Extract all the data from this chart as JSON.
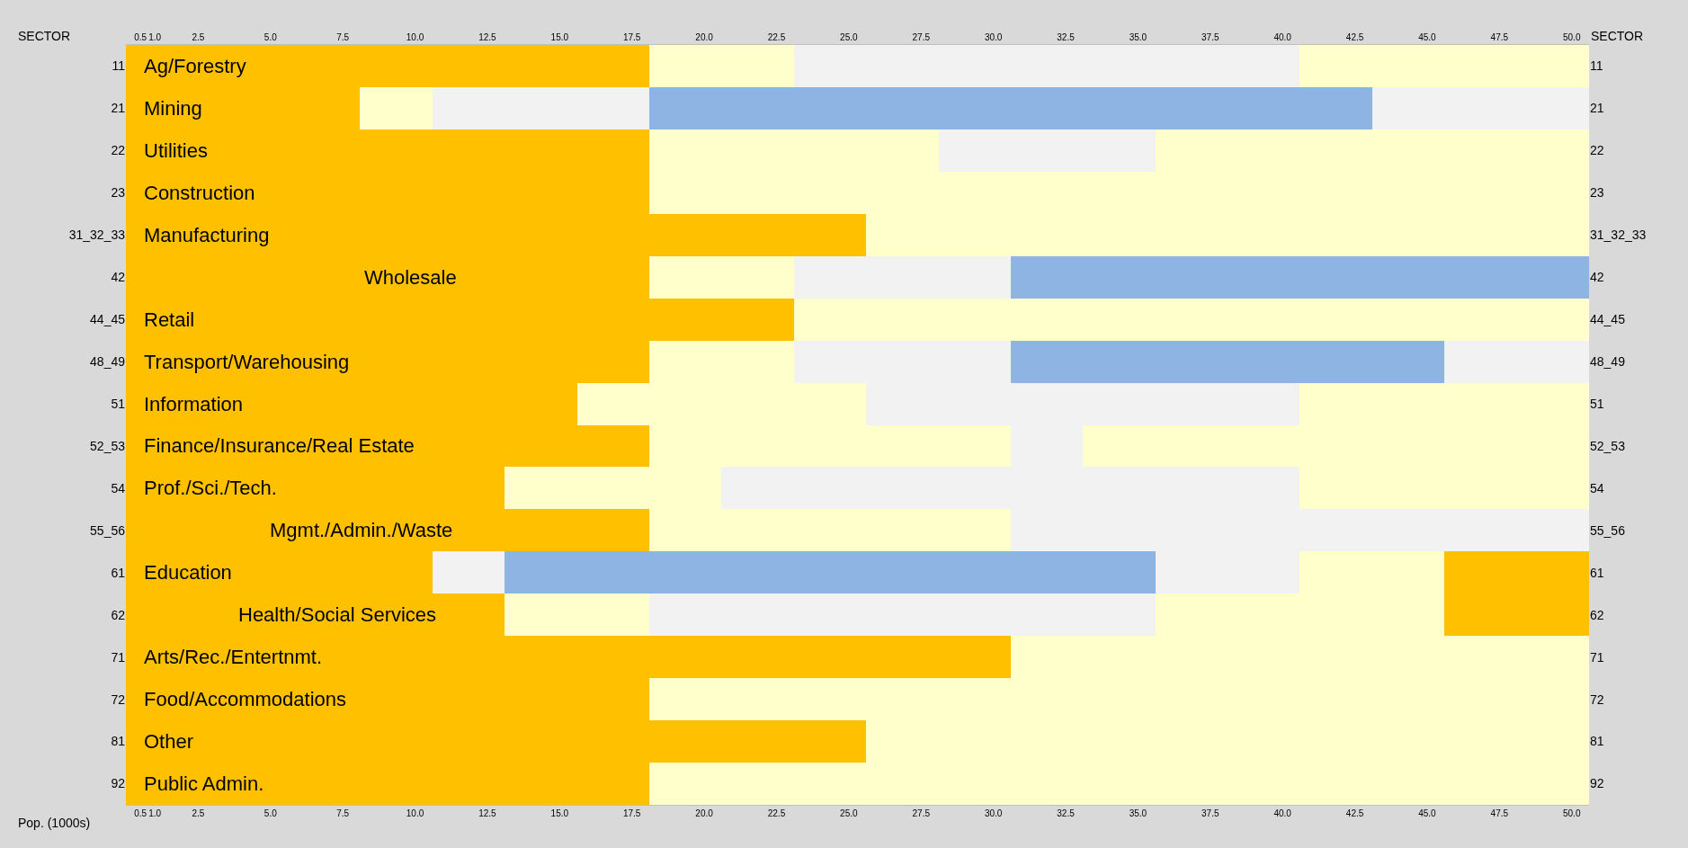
{
  "chart_data": {
    "type": "bar",
    "orientation": "horizontal",
    "stacked": true,
    "xlabel": "Pop. (1000s)",
    "ylabel": "SECTOR",
    "y2label": "SECTOR",
    "categories": [
      "11",
      "21",
      "22",
      "23",
      "31_32_33",
      "42",
      "44_45",
      "48_49",
      "51",
      "52_53",
      "54",
      "55_56",
      "61",
      "62",
      "71",
      "72",
      "81",
      "92"
    ],
    "series": [
      {
        "values": [
          18.1,
          8.1,
          18.1,
          18.1,
          25.6,
          18.1,
          23.1,
          18.1,
          15.6,
          18.1,
          13.1,
          18.1,
          10.6,
          13.1,
          30.6,
          18.1,
          25.6,
          18.1
        ],
        "colors": [
          "#ffc000",
          "#ffc000",
          "#ffc000",
          "#ffc000",
          "#ffc000",
          "#ffc000",
          "#ffc000",
          "#ffc000",
          "#ffc000",
          "#ffc000",
          "#ffc000",
          "#ffc000",
          "#ffc000",
          "#ffc000",
          "#ffc000",
          "#ffc000",
          "#ffc000",
          "#ffc000"
        ]
      },
      {
        "values": [
          5,
          2.5,
          10,
          32.5,
          25,
          5,
          27.5,
          5,
          10,
          12.5,
          7.5,
          12.5,
          2.5,
          5,
          20,
          32.5,
          25,
          32.5
        ],
        "colors": [
          "#ffffcc",
          "#ffffcc",
          "#ffffcc",
          "#ffffcc",
          "#ffffcc",
          "#ffffcc",
          "#ffffcc",
          "#ffffcc",
          "#ffffcc",
          "#ffffcc",
          "#ffffcc",
          "#ffffcc",
          "#f2f2f2",
          "#ffffcc",
          "#ffffcc",
          "#ffffcc",
          "#ffffcc",
          "#ffffcc"
        ]
      },
      {
        "values": [
          17.5,
          7.5,
          7.5,
          null,
          null,
          7.5,
          null,
          7.5,
          15,
          2.5,
          20,
          20,
          22.5,
          17.5,
          null,
          null,
          null,
          null
        ],
        "colors": [
          "#f2f2f2",
          "#f2f2f2",
          "#f2f2f2",
          null,
          null,
          "#f2f2f2",
          null,
          "#f2f2f2",
          "#f2f2f2",
          "#f2f2f2",
          "#f2f2f2",
          "#f2f2f2",
          "#8db4e2",
          "#f2f2f2",
          null,
          null,
          null,
          null
        ]
      },
      {
        "values": [
          10,
          25,
          15,
          null,
          null,
          20,
          null,
          15,
          10,
          17.5,
          10,
          null,
          5,
          10,
          null,
          null,
          null,
          null
        ],
        "colors": [
          "#ffffcc",
          "#8db4e2",
          "#ffffcc",
          null,
          null,
          "#8db4e2",
          null,
          "#8db4e2",
          "#ffffcc",
          "#ffffcc",
          "#ffffcc",
          null,
          "#f2f2f2",
          "#ffffcc",
          null,
          null,
          null,
          null
        ]
      },
      {
        "values": [
          null,
          7.5,
          null,
          null,
          null,
          null,
          null,
          5,
          null,
          null,
          null,
          null,
          5,
          5,
          null,
          null,
          null,
          null
        ],
        "colors": [
          null,
          "#f2f2f2",
          null,
          null,
          null,
          null,
          null,
          "#f2f2f2",
          null,
          null,
          null,
          null,
          "#ffffcc",
          "#ffc000",
          null,
          null,
          null,
          null
        ]
      },
      {
        "values": [
          null,
          null,
          null,
          null,
          null,
          null,
          null,
          null,
          null,
          null,
          null,
          null,
          5,
          null,
          null,
          null,
          null,
          null
        ],
        "colors": [
          null,
          null,
          null,
          null,
          null,
          null,
          null,
          null,
          null,
          null,
          null,
          null,
          "#ffc000",
          null,
          null,
          null,
          null,
          null
        ]
      }
    ],
    "xlim": [
      0,
      50.6
    ],
    "xticks": [
      {
        "value": 0.5,
        "label": "0.5"
      },
      {
        "value": 1,
        "label": "1.0"
      },
      {
        "value": 2.5,
        "label": "2.5"
      },
      {
        "value": 5,
        "label": "5.0"
      },
      {
        "value": 7.5,
        "label": "7.5"
      },
      {
        "value": 10,
        "label": "10.0"
      },
      {
        "value": 12.5,
        "label": "12.5"
      },
      {
        "value": 15,
        "label": "15.0"
      },
      {
        "value": 17.5,
        "label": "17.5"
      },
      {
        "value": 20,
        "label": "20.0"
      },
      {
        "value": 22.5,
        "label": "22.5"
      },
      {
        "value": 25,
        "label": "25.0"
      },
      {
        "value": 27.5,
        "label": "27.5"
      },
      {
        "value": 30,
        "label": "30.0"
      },
      {
        "value": 32.5,
        "label": "32.5"
      },
      {
        "value": 35,
        "label": "35.0"
      },
      {
        "value": 37.5,
        "label": "37.5"
      },
      {
        "value": 40,
        "label": "40.0"
      },
      {
        "value": 42.5,
        "label": "42.5"
      },
      {
        "value": 45,
        "label": "45.0"
      },
      {
        "value": 47.5,
        "label": "47.5"
      },
      {
        "value": 50,
        "label": "50.0"
      }
    ],
    "x2lim": [
      0,
      50.6
    ],
    "x2ticks": [
      {
        "value": 0.5,
        "label": "0.5"
      },
      {
        "value": 1,
        "label": "1.0"
      },
      {
        "value": 2.5,
        "label": "2.5"
      },
      {
        "value": 5,
        "label": "5.0"
      },
      {
        "value": 7.5,
        "label": "7.5"
      },
      {
        "value": 10,
        "label": "10.0"
      },
      {
        "value": 12.5,
        "label": "12.5"
      },
      {
        "value": 15,
        "label": "15.0"
      },
      {
        "value": 17.5,
        "label": "17.5"
      },
      {
        "value": 20,
        "label": "20.0"
      },
      {
        "value": 22.5,
        "label": "22.5"
      },
      {
        "value": 25,
        "label": "25.0"
      },
      {
        "value": 27.5,
        "label": "27.5"
      },
      {
        "value": 30,
        "label": "30.0"
      },
      {
        "value": 32.5,
        "label": "32.5"
      },
      {
        "value": 35,
        "label": "35.0"
      },
      {
        "value": 37.5,
        "label": "37.5"
      },
      {
        "value": 40,
        "label": "40.0"
      },
      {
        "value": 42.5,
        "label": "42.5"
      },
      {
        "value": 45,
        "label": "45.0"
      },
      {
        "value": 47.5,
        "label": "47.5"
      },
      {
        "value": 50,
        "label": "50.0"
      }
    ],
    "annotations": [
      "Ag/Forestry",
      "Mining",
      "Utilities",
      "Construction",
      "Manufacturing",
      "Wholesale",
      "Retail",
      "Transport/Warehousing",
      "Information",
      "Finance/Insurance/Real Estate",
      "Prof./Sci./Tech.",
      "Mgmt./Admin./Waste",
      "Education",
      "Health/Social Services",
      "Arts/Rec./Entertnmt.",
      "Food/Accommodations",
      "Other",
      "Public Admin."
    ],
    "legend": false
  }
}
